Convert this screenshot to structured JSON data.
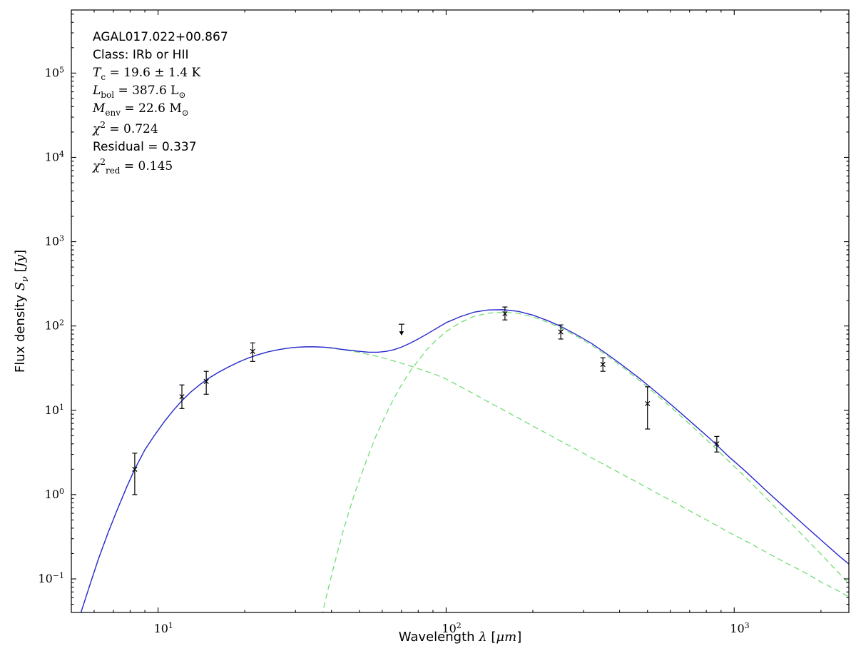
{
  "chart_data": {
    "type": "line",
    "title": "",
    "object_name": "AGAL017.022+00.867",
    "xlabel_plain": "Wavelength λ [μm]",
    "ylabel_plain": "Flux density Sν [Jy]",
    "x_scale": "log",
    "y_scale": "log",
    "xlim": [
      5,
      2500
    ],
    "ylim": [
      0.04,
      560000
    ],
    "x_ticks": [
      {
        "v": 10,
        "exp": "1"
      },
      {
        "v": 100,
        "exp": "2"
      },
      {
        "v": 1000,
        "exp": "3"
      }
    ],
    "y_ticks": [
      {
        "v": 0.1,
        "exp": "−1"
      },
      {
        "v": 1,
        "exp": "0"
      },
      {
        "v": 10,
        "exp": "1"
      },
      {
        "v": 100,
        "exp": "2"
      },
      {
        "v": 1000,
        "exp": "3"
      },
      {
        "v": 10000,
        "exp": "4"
      },
      {
        "v": 100000,
        "exp": "5"
      }
    ],
    "xlabel_segments": [
      {
        "t": "Wavelength ",
        "f": "sans"
      },
      {
        "t": "λ",
        "f": "serif",
        "i": true
      },
      {
        "t": " [",
        "f": "sans"
      },
      {
        "t": "μm",
        "f": "serif",
        "i": true
      },
      {
        "t": "]",
        "f": "sans"
      }
    ],
    "ylabel_segments": [
      {
        "t": "Flux density ",
        "f": "sans"
      },
      {
        "t": "S",
        "f": "serif",
        "i": true
      },
      {
        "t": "ν",
        "f": "serif",
        "i": true,
        "p": "sub"
      },
      {
        "t": " [",
        "f": "sans"
      },
      {
        "t": "Jy",
        "f": "serif",
        "i": true
      },
      {
        "t": "]",
        "f": "sans"
      }
    ],
    "annotations": [
      {
        "segments": [
          {
            "t": "AGAL017.022+00.867",
            "f": "sans"
          }
        ]
      },
      {
        "segments": [
          {
            "t": "Class: IRb or HII",
            "f": "sans"
          }
        ]
      },
      {
        "segments": [
          {
            "t": "T",
            "f": "serif",
            "i": true
          },
          {
            "t": "c",
            "f": "serif",
            "p": "sub"
          },
          {
            "t": " = 19.6 ± 1.4 K",
            "f": "serif"
          }
        ]
      },
      {
        "segments": [
          {
            "t": "L",
            "f": "serif",
            "i": true
          },
          {
            "t": "bol",
            "f": "serif",
            "p": "sub"
          },
          {
            "t": " = 387.6 L",
            "f": "serif"
          },
          {
            "t": "⊙",
            "f": "serif",
            "p": "sub"
          }
        ]
      },
      {
        "segments": [
          {
            "t": "M",
            "f": "serif",
            "i": true
          },
          {
            "t": "env",
            "f": "serif",
            "p": "sub"
          },
          {
            "t": " = 22.6 M",
            "f": "serif"
          },
          {
            "t": "⊙",
            "f": "serif",
            "p": "sub"
          }
        ]
      },
      {
        "segments": [
          {
            "t": "χ",
            "f": "serif",
            "i": true
          },
          {
            "t": "2",
            "f": "serif",
            "p": "sup"
          },
          {
            "t": " = 0.724",
            "f": "serif"
          }
        ]
      },
      {
        "segments": [
          {
            "t": "Residual = 0.337",
            "f": "sans"
          }
        ]
      },
      {
        "segments": [
          {
            "t": "χ",
            "f": "serif",
            "i": true
          },
          {
            "t": "2",
            "f": "serif",
            "p": "sup"
          },
          {
            "t": "red",
            "f": "serif",
            "p": "sub"
          },
          {
            "t": " = 0.145",
            "f": "serif"
          }
        ]
      }
    ],
    "colors": {
      "total": "#2727cf",
      "components": "#6fdc6f",
      "data": "#000000",
      "frame": "#000000",
      "background": "#ffffff"
    },
    "series": [
      {
        "name": "warm-component",
        "style": "dashed",
        "color_key": "components",
        "points": [
          [
            5.0,
            0.018
          ],
          [
            5.4,
            0.04
          ],
          [
            5.8,
            0.085
          ],
          [
            6.2,
            0.17
          ],
          [
            6.7,
            0.35
          ],
          [
            7.2,
            0.65
          ],
          [
            7.8,
            1.25
          ],
          [
            8.3,
            2.0
          ],
          [
            9.0,
            3.4
          ],
          [
            9.7,
            5.0
          ],
          [
            10.5,
            7.3
          ],
          [
            11.3,
            10.0
          ],
          [
            12.1,
            13.0
          ],
          [
            13,
            16.5
          ],
          [
            14,
            20.3
          ],
          [
            15,
            24.0
          ],
          [
            16.2,
            28.2
          ],
          [
            17.5,
            32.5
          ],
          [
            19,
            37.2
          ],
          [
            20.5,
            41.5
          ],
          [
            22,
            45.2
          ],
          [
            24,
            49.2
          ],
          [
            26,
            52.2
          ],
          [
            28,
            54.4
          ],
          [
            30,
            55.8
          ],
          [
            32.5,
            56.6
          ],
          [
            35,
            56.6
          ],
          [
            37.5,
            56.0
          ],
          [
            40,
            54.5
          ],
          [
            43,
            52.8
          ],
          [
            46,
            51.0
          ],
          [
            50,
            48.5
          ],
          [
            54,
            45.9
          ],
          [
            58,
            43.3
          ],
          [
            62,
            40.8
          ],
          [
            66,
            38.4
          ],
          [
            70,
            36.2
          ],
          [
            75,
            33.6
          ],
          [
            80,
            31.2
          ],
          [
            86,
            28.7
          ],
          [
            92,
            26.5
          ],
          [
            100,
            23.5
          ],
          [
            112,
            19.1
          ],
          [
            125,
            15.6
          ],
          [
            140,
            12.6
          ],
          [
            158,
            10.1
          ],
          [
            178,
            8.1
          ],
          [
            200,
            6.5
          ],
          [
            225,
            5.25
          ],
          [
            250,
            4.3
          ],
          [
            285,
            3.4
          ],
          [
            320,
            2.73
          ],
          [
            360,
            2.2
          ],
          [
            410,
            1.73
          ],
          [
            470,
            1.35
          ],
          [
            540,
            1.04
          ],
          [
            620,
            0.81
          ],
          [
            720,
            0.61
          ],
          [
            830,
            0.47
          ],
          [
            960,
            0.355
          ],
          [
            1100,
            0.28
          ],
          [
            1300,
            0.205
          ],
          [
            1500,
            0.157
          ],
          [
            1750,
            0.12
          ],
          [
            2000,
            0.092
          ],
          [
            2300,
            0.072
          ],
          [
            2500,
            0.061
          ]
        ]
      },
      {
        "name": "cold-component",
        "style": "dashed",
        "color_key": "components",
        "points": [
          [
            34,
            0.008
          ],
          [
            36,
            0.023
          ],
          [
            38,
            0.054
          ],
          [
            40,
            0.11
          ],
          [
            42,
            0.21
          ],
          [
            44,
            0.38
          ],
          [
            46,
            0.63
          ],
          [
            48,
            1.0
          ],
          [
            50,
            1.5
          ],
          [
            53,
            2.6
          ],
          [
            57,
            4.9
          ],
          [
            62,
            9.2
          ],
          [
            66,
            14.0
          ],
          [
            70,
            20.0
          ],
          [
            75,
            29
          ],
          [
            80,
            39
          ],
          [
            86,
            53
          ],
          [
            92,
            67
          ],
          [
            100,
            86
          ],
          [
            112,
            110
          ],
          [
            125,
            130
          ],
          [
            140,
            142
          ],
          [
            158,
            145.5
          ],
          [
            178,
            141
          ],
          [
            200,
            128
          ],
          [
            225,
            111
          ],
          [
            250,
            95
          ],
          [
            285,
            75
          ],
          [
            320,
            59
          ],
          [
            360,
            45
          ],
          [
            410,
            32.4
          ],
          [
            470,
            22.4
          ],
          [
            540,
            15.1
          ],
          [
            620,
            10.0
          ],
          [
            720,
            6.3
          ],
          [
            830,
            4.0
          ],
          [
            960,
            2.47
          ],
          [
            1100,
            1.58
          ],
          [
            1300,
            0.886
          ],
          [
            1500,
            0.54
          ],
          [
            1750,
            0.315
          ],
          [
            2000,
            0.197
          ],
          [
            2300,
            0.119
          ],
          [
            2500,
            0.088
          ]
        ]
      },
      {
        "name": "model-total",
        "style": "solid",
        "color_key": "total",
        "points": [
          [
            5.0,
            0.018
          ],
          [
            5.4,
            0.04
          ],
          [
            5.8,
            0.085
          ],
          [
            6.2,
            0.17
          ],
          [
            6.7,
            0.35
          ],
          [
            7.2,
            0.65
          ],
          [
            7.8,
            1.25
          ],
          [
            8.3,
            2.0
          ],
          [
            9.0,
            3.4
          ],
          [
            9.7,
            5.0
          ],
          [
            10.5,
            7.3
          ],
          [
            11.3,
            10.0
          ],
          [
            12.1,
            13.0
          ],
          [
            13,
            16.5
          ],
          [
            14,
            20.3
          ],
          [
            15,
            24.0
          ],
          [
            16.2,
            28.2
          ],
          [
            17.5,
            32.5
          ],
          [
            19,
            37.2
          ],
          [
            20.5,
            41.5
          ],
          [
            22,
            45.2
          ],
          [
            24,
            49.2
          ],
          [
            26,
            52.2
          ],
          [
            28,
            54.4
          ],
          [
            30,
            55.8
          ],
          [
            32.5,
            56.6
          ],
          [
            35,
            56.6
          ],
          [
            37.5,
            56.1
          ],
          [
            40,
            55.0
          ],
          [
            43,
            53.1
          ],
          [
            46,
            51.6
          ],
          [
            50,
            50.0
          ],
          [
            54,
            48.8
          ],
          [
            58,
            48.8
          ],
          [
            62,
            50.0
          ],
          [
            66,
            52.4
          ],
          [
            70,
            56.2
          ],
          [
            75,
            62.6
          ],
          [
            80,
            70.2
          ],
          [
            86,
            80.7
          ],
          [
            92,
            92.5
          ],
          [
            100,
            109.5
          ],
          [
            112,
            129
          ],
          [
            125,
            146
          ],
          [
            140,
            155
          ],
          [
            158,
            156
          ],
          [
            178,
            149
          ],
          [
            200,
            134.5
          ],
          [
            225,
            116
          ],
          [
            250,
            99
          ],
          [
            285,
            78
          ],
          [
            320,
            62
          ],
          [
            360,
            47
          ],
          [
            410,
            34
          ],
          [
            470,
            23.8
          ],
          [
            540,
            16.1
          ],
          [
            620,
            10.8
          ],
          [
            720,
            6.9
          ],
          [
            830,
            4.5
          ],
          [
            960,
            2.8
          ],
          [
            1100,
            1.86
          ],
          [
            1300,
            1.09
          ],
          [
            1500,
            0.7
          ],
          [
            1750,
            0.435
          ],
          [
            2000,
            0.29
          ],
          [
            2300,
            0.19
          ],
          [
            2500,
            0.15
          ]
        ]
      }
    ],
    "data_points": {
      "marker": "x",
      "color_key": "data",
      "values": [
        {
          "x": 8.3,
          "y": 2.0,
          "ylo": 1.0,
          "yhi": 3.1
        },
        {
          "x": 12.1,
          "y": 14.5,
          "ylo": 10.5,
          "yhi": 20
        },
        {
          "x": 14.7,
          "y": 22,
          "ylo": 15.5,
          "yhi": 29
        },
        {
          "x": 21.3,
          "y": 50,
          "ylo": 38,
          "yhi": 63
        },
        {
          "x": 160,
          "y": 140,
          "ylo": 118,
          "yhi": 168
        },
        {
          "x": 250,
          "y": 85,
          "ylo": 70,
          "yhi": 103
        },
        {
          "x": 350,
          "y": 35,
          "ylo": 29,
          "yhi": 42
        },
        {
          "x": 500,
          "y": 12,
          "ylo": 6,
          "yhi": 19
        },
        {
          "x": 870,
          "y": 4.0,
          "ylo": 3.2,
          "yhi": 4.9
        }
      ],
      "upper_limits": [
        {
          "x": 70,
          "y": 105
        }
      ]
    }
  }
}
